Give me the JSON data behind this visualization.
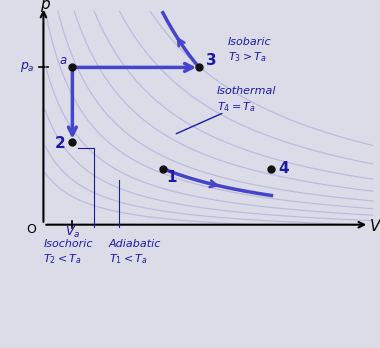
{
  "bg_color": "#dcdce8",
  "dark_blue": "#1a1aaa",
  "mid_blue": "#4444cc",
  "light_blue": "#8888cc",
  "lighter_blue": "#aaaadd",
  "Va": 2.0,
  "pa": 7.5,
  "point_a": [
    2.0,
    7.5
  ],
  "point_1": [
    4.5,
    3.0
  ],
  "point_2": [
    2.0,
    4.2
  ],
  "point_3": [
    5.5,
    7.5
  ],
  "point_4": [
    7.5,
    3.0
  ],
  "ax_origin_x": 1.2,
  "ax_origin_y": 0.5,
  "xlim": [
    0.0,
    10.5
  ],
  "ylim": [
    -2.2,
    10.5
  ],
  "gamma": 1.4
}
